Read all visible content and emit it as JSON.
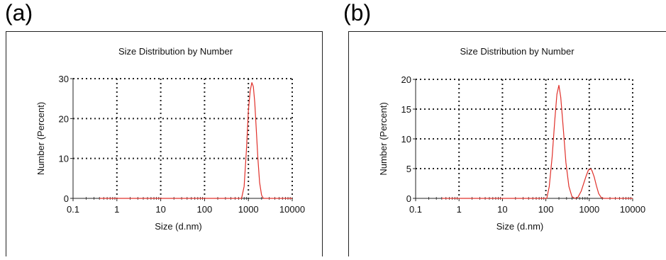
{
  "panels": [
    {
      "label": "(a)"
    },
    {
      "label": "(b)"
    }
  ],
  "chart_data": [
    {
      "type": "line",
      "title": "Size Distribution by Number",
      "xlabel": "Size (d.nm)",
      "ylabel": "Number (Percent)",
      "xscale": "log",
      "xlim": [
        0.1,
        10000
      ],
      "ylim": [
        0,
        30
      ],
      "xticks": [
        0.1,
        1,
        10,
        100,
        1000,
        10000
      ],
      "xtick_labels": [
        "0.1",
        "1",
        "10",
        "100",
        "1000",
        "10000"
      ],
      "yticks": [
        0,
        10,
        20,
        30
      ],
      "ytick_labels": [
        "0",
        "10",
        "20",
        "30"
      ],
      "grid": true,
      "color": "#e0302a",
      "series": [
        {
          "x": [
            0.4,
            700,
            800,
            900,
            1000,
            1100,
            1200,
            1300,
            1400,
            1500,
            1650,
            1800,
            2000,
            2200,
            10000
          ],
          "y": [
            0,
            0,
            3,
            12,
            22,
            27,
            29,
            28,
            24,
            18,
            10,
            4,
            0.8,
            0,
            0
          ]
        }
      ]
    },
    {
      "type": "line",
      "title": "Size Distribution by Number",
      "xlabel": "Size (d.nm)",
      "ylabel": "Number (Percent)",
      "xscale": "log",
      "xlim": [
        0.1,
        10000
      ],
      "ylim": [
        0,
        20
      ],
      "xticks": [
        0.1,
        1,
        10,
        100,
        1000,
        10000
      ],
      "xtick_labels": [
        "0.1",
        "1",
        "10",
        "100",
        "1000",
        "10000"
      ],
      "yticks": [
        0,
        5,
        10,
        15,
        20
      ],
      "ytick_labels": [
        "0",
        "5",
        "10",
        "15",
        "20"
      ],
      "grid": true,
      "color": "#e0302a",
      "series": [
        {
          "x": [
            0.4,
            105,
            120,
            140,
            160,
            180,
            200,
            220,
            250,
            290,
            340,
            400,
            470,
            550,
            650,
            750,
            850,
            950,
            1050,
            1150,
            1300,
            1450,
            1650,
            1900,
            2200,
            10000
          ],
          "y": [
            0,
            0,
            2,
            7,
            13,
            17.5,
            19,
            17,
            12,
            6,
            2,
            0.3,
            0,
            0.2,
            1.2,
            2.6,
            3.8,
            4.7,
            5,
            4.7,
            3.6,
            2.2,
            0.8,
            0.1,
            0,
            0
          ]
        }
      ]
    }
  ]
}
